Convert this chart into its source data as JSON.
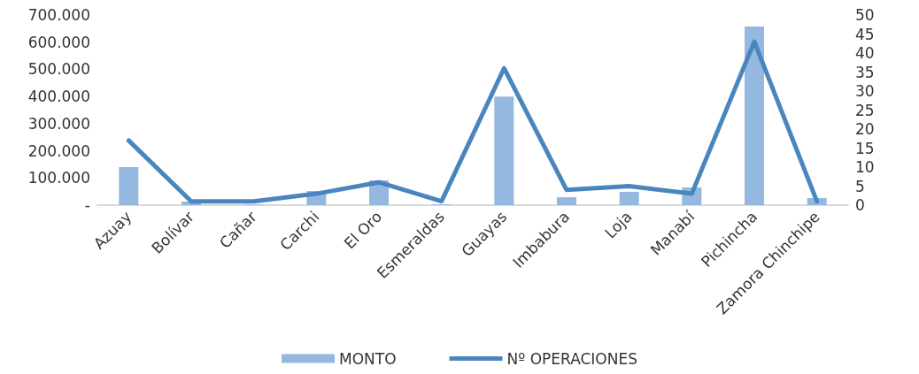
{
  "chart_data": {
    "type": "bar",
    "categories": [
      "Azuay",
      "Bolívar",
      "Cañar",
      "Carchi",
      "El Oro",
      "Esmeraldas",
      "Guayas",
      "Imbabura",
      "Loja",
      "Manabí",
      "Pichincha",
      "Zamora Chinchipe"
    ],
    "series": [
      {
        "name": "MONTO",
        "color": "#95b8e0",
        "values": [
          140000,
          13000,
          2000,
          52000,
          91000,
          3000,
          400000,
          29000,
          49000,
          65000,
          658000,
          26000
        ]
      },
      {
        "name": "Nº OPERACIONES",
        "type": "line",
        "axis": "y2",
        "color": "#4a86be",
        "values": [
          17,
          1,
          1,
          3,
          6,
          1,
          36,
          4,
          5,
          3,
          43,
          1
        ]
      }
    ],
    "ylim": [
      0,
      700000
    ],
    "yticks": [
      {
        "value": 0,
        "label": "-"
      },
      {
        "value": 100000,
        "label": "100.000"
      },
      {
        "value": 200000,
        "label": "200.000"
      },
      {
        "value": 300000,
        "label": "300.000"
      },
      {
        "value": 400000,
        "label": "400.000"
      },
      {
        "value": 500000,
        "label": "500.000"
      },
      {
        "value": 600000,
        "label": "600.000"
      },
      {
        "value": 700000,
        "label": "700.000"
      }
    ],
    "y2lim": [
      0,
      50
    ],
    "y2ticks": [
      0,
      5,
      10,
      15,
      20,
      25,
      30,
      35,
      40,
      45,
      50
    ],
    "grid": false,
    "legend": "bottom",
    "marker": "none",
    "line_style": "solid"
  }
}
